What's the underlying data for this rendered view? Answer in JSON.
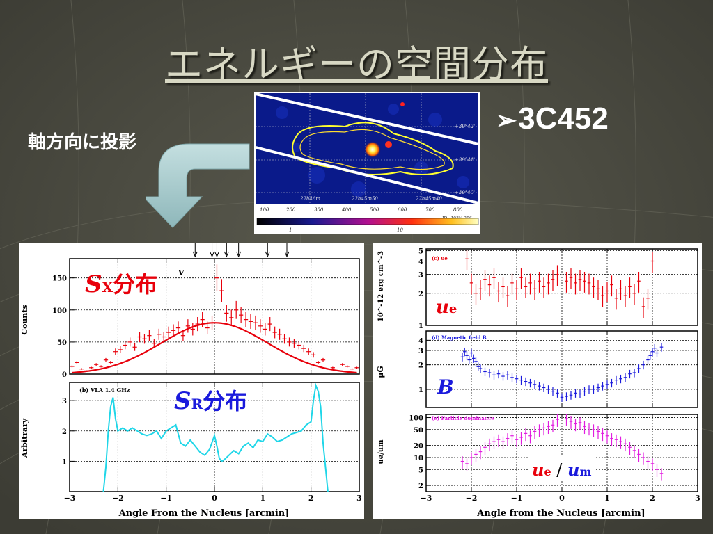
{
  "title": "エネルギーの空間分布",
  "bullet": {
    "marker": "➢",
    "text": "3C452"
  },
  "projection_label": "軸方向に投影",
  "xray_image": {
    "dec_labels": [
      "+39°42'",
      "+39°41'",
      "+39°40'"
    ],
    "ra_labels": [
      "22h46m",
      "22h45m50",
      "22h45m40"
    ],
    "pixel_ticks": [
      "100",
      "200",
      "300",
      "400",
      "500",
      "600",
      "700",
      "800"
    ],
    "colorbar_labels": [
      "1",
      "10"
    ],
    "note": "ID=103N-256"
  },
  "chart_data": [
    {
      "type": "scatter",
      "id": "a",
      "title": "",
      "panel_label": "V",
      "xlabel": "Angle From the Nucleus [arcmin]",
      "ylabel": "Counts",
      "xlim": [
        -3,
        3
      ],
      "ylim": [
        0,
        180
      ],
      "xticks": [
        -3,
        -2,
        -1,
        0,
        1,
        2,
        3
      ],
      "yticks": [
        0,
        50,
        100,
        150
      ],
      "annotation": {
        "main": "S",
        "sub": "X",
        "suffix": "分布",
        "color": "#e8000b"
      },
      "arrows_x": [
        -0.4,
        -0.05,
        0.05,
        0.25,
        0.5,
        1.1,
        1.5
      ],
      "series": [
        {
          "color": "#e8000b",
          "x": [
            -2.95,
            -2.85,
            -2.75,
            -2.65,
            -2.55,
            -2.45,
            -2.35,
            -2.25,
            -2.15,
            -2.05,
            -1.95,
            -1.85,
            -1.75,
            -1.65,
            -1.55,
            -1.45,
            -1.35,
            -1.25,
            -1.15,
            -1.05,
            -0.95,
            -0.85,
            -0.75,
            -0.65,
            -0.55,
            -0.45,
            -0.35,
            -0.25,
            -0.15,
            -0.05,
            0.05,
            0.15,
            0.25,
            0.35,
            0.45,
            0.55,
            0.65,
            0.75,
            0.85,
            0.95,
            1.05,
            1.15,
            1.25,
            1.35,
            1.45,
            1.55,
            1.65,
            1.75,
            1.85,
            1.95,
            2.05,
            2.15,
            2.25,
            2.35,
            2.45,
            2.55,
            2.65,
            2.75,
            2.85,
            2.95
          ],
          "y": [
            12,
            18,
            8,
            5,
            10,
            15,
            12,
            22,
            18,
            35,
            38,
            45,
            50,
            42,
            58,
            55,
            60,
            48,
            62,
            58,
            65,
            68,
            72,
            60,
            75,
            70,
            78,
            85,
            72,
            80,
            150,
            130,
            95,
            88,
            100,
            92,
            85,
            82,
            80,
            75,
            70,
            78,
            65,
            62,
            55,
            50,
            48,
            45,
            40,
            35,
            30,
            18,
            22,
            8,
            10,
            5,
            15,
            12,
            8,
            10
          ]
        }
      ],
      "fit": {
        "color": "#e8000b",
        "peak": 80,
        "center": 0.0,
        "sigma": 1.1
      }
    },
    {
      "type": "line",
      "id": "b",
      "title": "(b) VLA 1.4 GHz",
      "xlabel": "Angle From the Nucleus [arcmin]",
      "ylabel": "Arbitrary",
      "xlim": [
        -3,
        3
      ],
      "ylim": [
        0,
        3.6
      ],
      "xticks": [
        -3,
        -2,
        -1,
        0,
        1,
        2,
        3
      ],
      "yticks": [
        1,
        2,
        3
      ],
      "annotation": {
        "main": "S",
        "sub": "R",
        "suffix": "分布",
        "color": "#1a1adc"
      },
      "series": [
        {
          "color": "#1fd6e8",
          "x": [
            -2.3,
            -2.25,
            -2.2,
            -2.15,
            -2.1,
            -2.05,
            -2.0,
            -1.9,
            -1.8,
            -1.7,
            -1.6,
            -1.5,
            -1.4,
            -1.3,
            -1.2,
            -1.1,
            -1.0,
            -0.9,
            -0.8,
            -0.7,
            -0.6,
            -0.5,
            -0.4,
            -0.3,
            -0.2,
            -0.1,
            0.0,
            0.05,
            0.1,
            0.15,
            0.2,
            0.3,
            0.4,
            0.5,
            0.6,
            0.7,
            0.8,
            0.9,
            1.0,
            1.1,
            1.2,
            1.3,
            1.4,
            1.5,
            1.6,
            1.7,
            1.8,
            1.9,
            2.0,
            2.05,
            2.1,
            2.15,
            2.2,
            2.25,
            2.3,
            2.35
          ],
          "y": [
            0,
            0.8,
            2.0,
            2.8,
            3.1,
            2.4,
            2.0,
            2.1,
            2.0,
            2.1,
            2.0,
            1.9,
            1.85,
            1.9,
            2.0,
            1.75,
            2.0,
            2.1,
            2.2,
            1.6,
            1.5,
            1.7,
            1.5,
            1.3,
            1.2,
            1.4,
            1.85,
            1.5,
            1.1,
            1.0,
            1.05,
            1.2,
            1.35,
            1.25,
            1.5,
            1.6,
            1.45,
            1.7,
            1.65,
            1.9,
            1.8,
            1.65,
            1.7,
            1.8,
            1.9,
            1.95,
            2.0,
            2.2,
            2.3,
            3.0,
            3.5,
            3.3,
            2.8,
            1.6,
            0.8,
            0
          ]
        }
      ]
    },
    {
      "type": "scatter",
      "id": "c",
      "title": "(c) ue",
      "xlabel": "",
      "ylabel": "10^-12 erg cm^-3",
      "xlim": [
        -3,
        3
      ],
      "ylim": [
        1,
        5.2
      ],
      "yscale": "log",
      "yticks": [
        1,
        2,
        3,
        4,
        5
      ],
      "annotation": {
        "main": "u",
        "sub": "e",
        "color": "#e8000b"
      },
      "series": [
        {
          "color": "#e8000b",
          "x": [
            -2.1,
            -2.0,
            -1.9,
            -1.8,
            -1.7,
            -1.6,
            -1.5,
            -1.4,
            -1.3,
            -1.2,
            -1.1,
            -1.0,
            -0.9,
            -0.8,
            -0.7,
            -0.6,
            -0.5,
            -0.4,
            -0.3,
            -0.2,
            -0.1,
            0.1,
            0.2,
            0.3,
            0.4,
            0.5,
            0.6,
            0.7,
            0.8,
            0.9,
            1.0,
            1.1,
            1.2,
            1.3,
            1.4,
            1.5,
            1.6,
            1.7,
            1.8,
            1.9,
            2.0
          ],
          "y": [
            4.2,
            2.5,
            2.0,
            2.2,
            2.7,
            2.4,
            2.8,
            2.1,
            2.3,
            1.9,
            2.5,
            2.2,
            2.8,
            2.3,
            2.5,
            2.2,
            2.6,
            2.3,
            2.5,
            2.7,
            3.0,
            2.6,
            2.8,
            2.5,
            2.7,
            2.6,
            2.5,
            2.3,
            2.2,
            1.9,
            2.1,
            2.4,
            1.8,
            2.2,
            1.9,
            2.3,
            2.0,
            2.6,
            1.5,
            1.8,
            4.0
          ]
        }
      ]
    },
    {
      "type": "scatter",
      "id": "d",
      "title": "(d) Magnetic field B",
      "xlabel": "",
      "ylabel": "μG",
      "xlim": [
        -3,
        3
      ],
      "ylim": [
        0.6,
        5.2
      ],
      "yscale": "log",
      "yticks": [
        1,
        2,
        3,
        4
      ],
      "annotation": {
        "main": "B",
        "color": "#1a1adc"
      },
      "series": [
        {
          "color": "#1a1adc",
          "x": [
            -2.2,
            -2.15,
            -2.1,
            -2.05,
            -2.0,
            -1.95,
            -1.9,
            -1.85,
            -1.8,
            -1.7,
            -1.6,
            -1.5,
            -1.4,
            -1.3,
            -1.2,
            -1.1,
            -1.0,
            -0.9,
            -0.8,
            -0.7,
            -0.6,
            -0.5,
            -0.4,
            -0.3,
            -0.2,
            -0.1,
            0.0,
            0.1,
            0.2,
            0.3,
            0.4,
            0.5,
            0.6,
            0.7,
            0.8,
            0.9,
            1.0,
            1.1,
            1.2,
            1.3,
            1.4,
            1.5,
            1.6,
            1.7,
            1.8,
            1.9,
            1.95,
            2.0,
            2.05,
            2.1,
            2.2
          ],
          "y": [
            2.5,
            2.9,
            2.6,
            2.3,
            2.8,
            2.4,
            2.2,
            1.9,
            1.8,
            1.65,
            1.6,
            1.5,
            1.55,
            1.45,
            1.5,
            1.4,
            1.35,
            1.3,
            1.25,
            1.2,
            1.15,
            1.1,
            1.05,
            1.0,
            0.95,
            0.9,
            0.8,
            0.82,
            0.85,
            0.9,
            0.88,
            0.95,
            1.0,
            1.0,
            1.05,
            1.1,
            1.15,
            1.2,
            1.3,
            1.35,
            1.4,
            1.55,
            1.6,
            1.8,
            2.0,
            2.3,
            2.6,
            2.9,
            3.2,
            2.8,
            3.3
          ]
        }
      ]
    },
    {
      "type": "scatter",
      "id": "e",
      "title": "(e) Particle dominance",
      "xlabel": "Angle from the Nucleus [arcmin]",
      "ylabel": "ue/um",
      "xlim": [
        -3,
        3
      ],
      "ylim": [
        1.4,
        120
      ],
      "yscale": "log",
      "xticks": [
        -3,
        -2,
        -1,
        0,
        1,
        2,
        3
      ],
      "yticks": [
        2,
        5,
        10,
        20,
        50,
        100
      ],
      "ytick_labels": [
        "2",
        "5",
        "10",
        "20",
        "50",
        "100"
      ],
      "annotation": {
        "main": "u",
        "sub": "e",
        "sep": " / ",
        "main2": "u",
        "sub2": "m",
        "colors": [
          "#e8000b",
          "#1a1adc"
        ]
      },
      "series": [
        {
          "color": "#e21de0",
          "x": [
            -2.2,
            -2.1,
            -2.0,
            -1.9,
            -1.8,
            -1.7,
            -1.6,
            -1.5,
            -1.4,
            -1.3,
            -1.2,
            -1.1,
            -1.0,
            -0.9,
            -0.8,
            -0.7,
            -0.6,
            -0.5,
            -0.4,
            -0.3,
            -0.2,
            -0.1,
            0.1,
            0.2,
            0.3,
            0.4,
            0.5,
            0.6,
            0.7,
            0.8,
            0.9,
            1.0,
            1.1,
            1.2,
            1.3,
            1.4,
            1.5,
            1.6,
            1.7,
            1.8,
            1.9,
            2.0,
            2.1,
            2.2
          ],
          "y": [
            8,
            7,
            10,
            12,
            14,
            18,
            22,
            25,
            28,
            25,
            30,
            35,
            28,
            32,
            40,
            35,
            45,
            50,
            55,
            60,
            65,
            90,
            95,
            80,
            70,
            75,
            60,
            55,
            50,
            45,
            40,
            35,
            30,
            28,
            25,
            22,
            18,
            15,
            12,
            10,
            8,
            7,
            5,
            4
          ]
        }
      ]
    }
  ]
}
